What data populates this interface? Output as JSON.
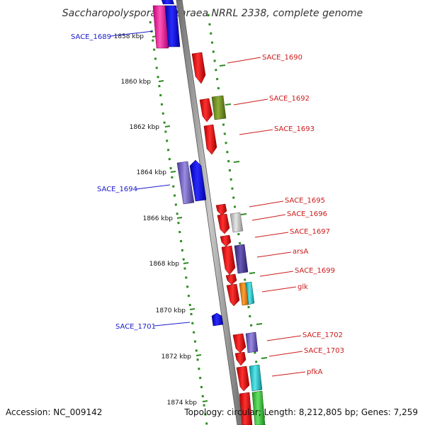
{
  "title": "Saccharopolyspora erythraea NRRL 2338, complete genome",
  "footer": {
    "accession": "Accession: NC_009142",
    "topology": "Topology: circular; Length: 8,212,805 bp; Genes: 7,259"
  },
  "colors": {
    "backbone": "#8c8c8c",
    "dotted_track": "#2e8b22",
    "left_label": "#1a1acc",
    "right_label": "#cc1a1a"
  },
  "ticks": [
    {
      "label": "1858 kbp"
    },
    {
      "label": "1860 kbp"
    },
    {
      "label": "1862 kbp"
    },
    {
      "label": "1864 kbp"
    },
    {
      "label": "1866 kbp"
    },
    {
      "label": "1868 kbp"
    },
    {
      "label": "1870 kbp"
    },
    {
      "label": "1872 kbp"
    },
    {
      "label": "1874 kbp"
    }
  ],
  "left_labels": [
    {
      "text": "SACE_1689"
    },
    {
      "text": "SACE_1694"
    },
    {
      "text": "SACE_1701"
    }
  ],
  "right_labels": [
    {
      "text": "SACE_1690"
    },
    {
      "text": "SACE_1692"
    },
    {
      "text": "SACE_1693"
    },
    {
      "text": "SACE_1695"
    },
    {
      "text": "SACE_1696"
    },
    {
      "text": "SACE_1697"
    },
    {
      "text": "arsA"
    },
    {
      "text": "SACE_1699"
    },
    {
      "text": "glk"
    },
    {
      "text": "SACE_1702"
    },
    {
      "text": "SACE_1703"
    },
    {
      "text": "pfkA"
    }
  ]
}
